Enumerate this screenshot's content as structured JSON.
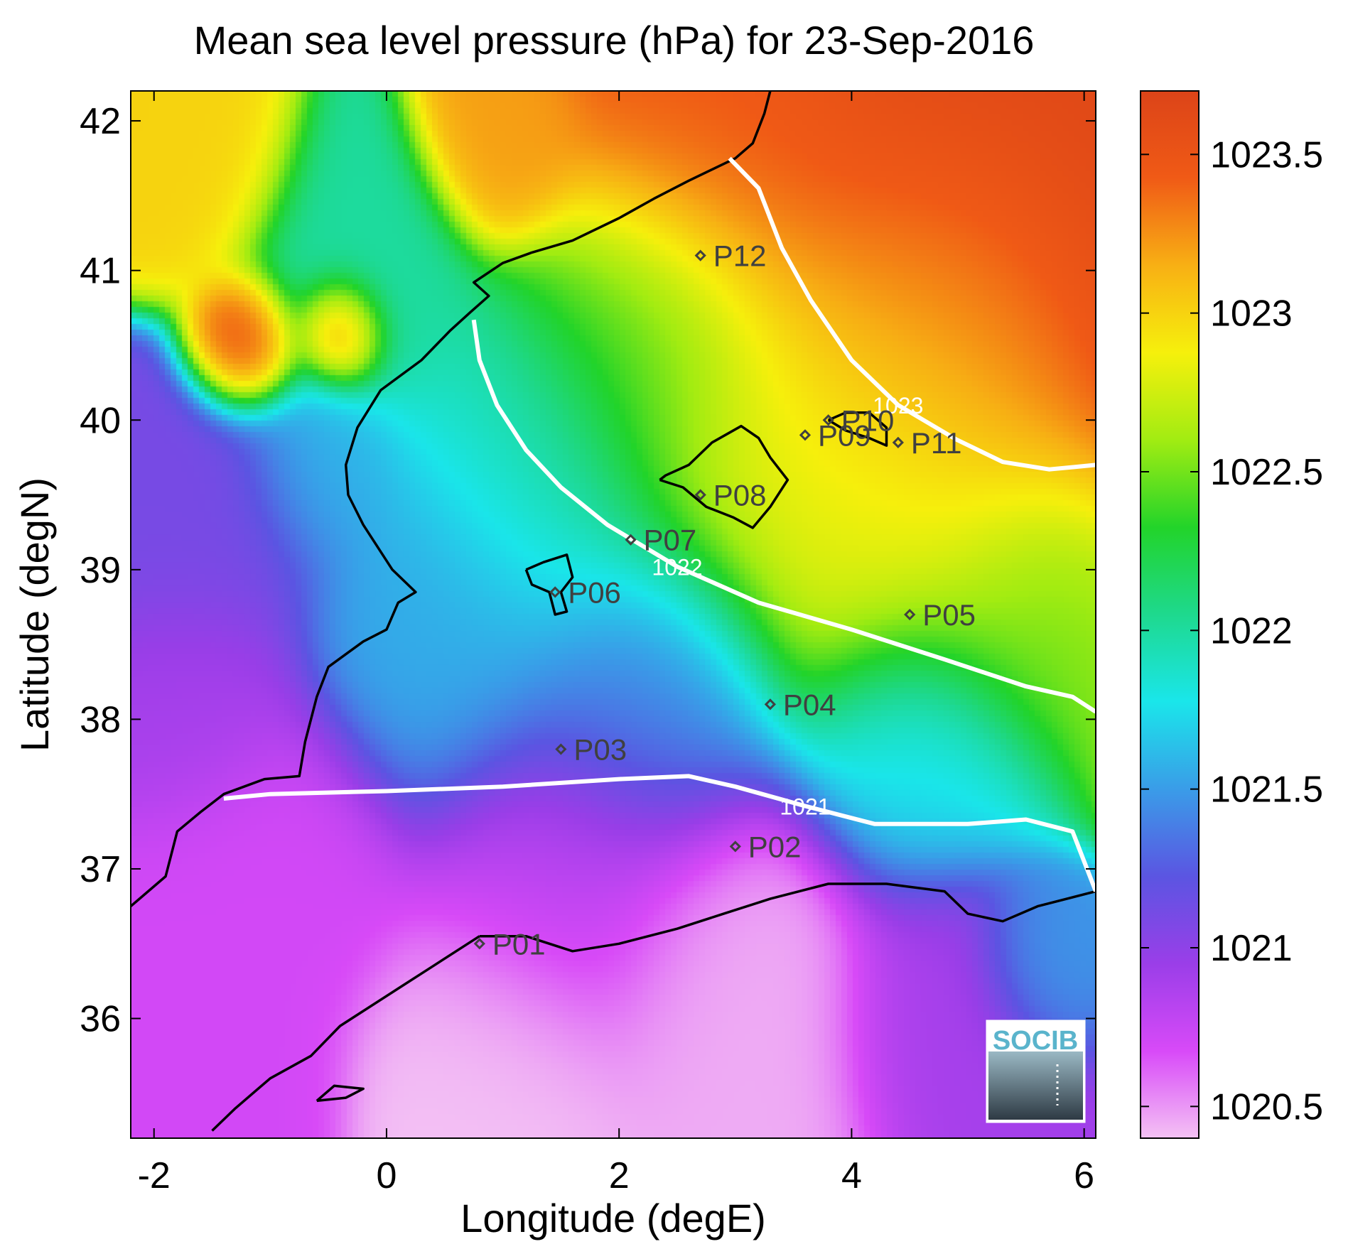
{
  "title": "Mean sea level pressure (hPa) for 23-Sep-2016",
  "xlabel": "Longitude (degE)",
  "ylabel": "Latitude (degN)",
  "chart_data": {
    "type": "heatmap",
    "title": "Mean sea level pressure (hPa) for 23-Sep-2016",
    "xlabel": "Longitude (degE)",
    "ylabel": "Latitude (degN)",
    "xlim": [
      -2.2,
      6.1
    ],
    "ylim": [
      35.2,
      42.2
    ],
    "x_ticks": [
      -2,
      0,
      2,
      4,
      6
    ],
    "y_ticks": [
      36,
      37,
      38,
      39,
      40,
      41,
      42
    ],
    "colorbar": {
      "range": [
        1020.4,
        1023.7
      ],
      "ticks": [
        1020.5,
        1021,
        1021.5,
        1022,
        1022.5,
        1023,
        1023.5
      ],
      "tick_labels": [
        "1020.5",
        "1021",
        "1021.5",
        "1022",
        "1022.5",
        "1023",
        "1023.5"
      ],
      "colors": [
        "#f4c2f4",
        "#d84af8",
        "#9a3ee8",
        "#5b55e2",
        "#3a9ce8",
        "#1ae6ea",
        "#1ed98e",
        "#22d42a",
        "#a2ec12",
        "#f6f00c",
        "#f8b014",
        "#f05a16",
        "#dc4418"
      ]
    },
    "contours": [
      {
        "label": "1021",
        "points": [
          [
            -1.4,
            37.47
          ],
          [
            -1.0,
            37.5
          ],
          [
            0,
            37.52
          ],
          [
            1.0,
            37.55
          ],
          [
            2.0,
            37.6
          ],
          [
            2.6,
            37.62
          ],
          [
            3.0,
            37.55
          ],
          [
            3.6,
            37.42
          ],
          [
            4.2,
            37.3
          ],
          [
            5.0,
            37.3
          ],
          [
            5.5,
            37.33
          ],
          [
            5.9,
            37.25
          ],
          [
            6.05,
            36.95
          ],
          [
            6.1,
            36.85
          ]
        ]
      },
      {
        "label": "1022",
        "points": [
          [
            0.75,
            40.67
          ],
          [
            0.8,
            40.4
          ],
          [
            0.95,
            40.1
          ],
          [
            1.2,
            39.8
          ],
          [
            1.5,
            39.55
          ],
          [
            1.9,
            39.3
          ],
          [
            2.5,
            39.02
          ],
          [
            3.2,
            38.78
          ],
          [
            4.0,
            38.6
          ],
          [
            4.8,
            38.4
          ],
          [
            5.5,
            38.22
          ],
          [
            5.9,
            38.15
          ],
          [
            6.1,
            38.05
          ]
        ]
      },
      {
        "label": "1023",
        "points": [
          [
            2.95,
            41.75
          ],
          [
            3.2,
            41.55
          ],
          [
            3.4,
            41.15
          ],
          [
            3.65,
            40.8
          ],
          [
            4.0,
            40.4
          ],
          [
            4.4,
            40.1
          ],
          [
            4.9,
            39.87
          ],
          [
            5.3,
            39.72
          ],
          [
            5.7,
            39.67
          ],
          [
            6.1,
            39.7
          ]
        ]
      }
    ],
    "stations": [
      {
        "name": "P01",
        "lon": 0.8,
        "lat": 36.5
      },
      {
        "name": "P02",
        "lon": 3.0,
        "lat": 37.15
      },
      {
        "name": "P03",
        "lon": 1.5,
        "lat": 37.8
      },
      {
        "name": "P04",
        "lon": 3.3,
        "lat": 38.1
      },
      {
        "name": "P05",
        "lon": 4.5,
        "lat": 38.7
      },
      {
        "name": "P06",
        "lon": 1.45,
        "lat": 38.85
      },
      {
        "name": "P07",
        "lon": 2.1,
        "lat": 39.2
      },
      {
        "name": "P08",
        "lon": 2.7,
        "lat": 39.5
      },
      {
        "name": "P09",
        "lon": 3.6,
        "lat": 39.9
      },
      {
        "name": "P10",
        "lon": 3.8,
        "lat": 40.0
      },
      {
        "name": "P11",
        "lon": 4.4,
        "lat": 39.85
      },
      {
        "name": "P12",
        "lon": 2.7,
        "lat": 41.1
      }
    ],
    "field_blobs": [
      {
        "lon": 5.2,
        "lat": 41.6,
        "r": 2.8,
        "v": 1023.65
      },
      {
        "lon": 4.8,
        "lat": 40.6,
        "r": 1.6,
        "v": 1023.1
      },
      {
        "lon": 3.0,
        "lat": 41.9,
        "r": 1.5,
        "v": 1023.4
      },
      {
        "lon": 3.2,
        "lat": 40.0,
        "r": 1.7,
        "v": 1022.75
      },
      {
        "lon": 4.5,
        "lat": 39.4,
        "r": 1.6,
        "v": 1022.7
      },
      {
        "lon": 5.6,
        "lat": 38.8,
        "r": 1.1,
        "v": 1022.45
      },
      {
        "lon": 2.3,
        "lat": 40.5,
        "r": 1.2,
        "v": 1022.35
      },
      {
        "lon": 1.4,
        "lat": 39.6,
        "r": 1.3,
        "v": 1021.9
      },
      {
        "lon": 0.5,
        "lat": 38.6,
        "r": 1.3,
        "v": 1021.55
      },
      {
        "lon": 2.2,
        "lat": 38.2,
        "r": 1.3,
        "v": 1021.4
      },
      {
        "lon": 4.6,
        "lat": 37.8,
        "r": 1.1,
        "v": 1021.7
      },
      {
        "lon": -0.3,
        "lat": 41.0,
        "r": 1.0,
        "v": 1022.0
      },
      {
        "lon": -1.6,
        "lat": 41.7,
        "r": 0.8,
        "v": 1023.0
      },
      {
        "lon": -1.2,
        "lat": 40.5,
        "r": 0.5,
        "v": 1023.6
      },
      {
        "lon": -0.4,
        "lat": 40.6,
        "r": 0.4,
        "v": 1023.6
      },
      {
        "lon": 1.0,
        "lat": 41.9,
        "r": 0.7,
        "v": 1023.2
      },
      {
        "lon": -1.5,
        "lat": 39.3,
        "r": 1.1,
        "v": 1021.1
      },
      {
        "lon": -0.6,
        "lat": 39.7,
        "r": 0.7,
        "v": 1021.6
      },
      {
        "lon": -1.6,
        "lat": 38.1,
        "r": 0.9,
        "v": 1020.9
      },
      {
        "lon": -1.0,
        "lat": 37.0,
        "r": 1.2,
        "v": 1020.7
      },
      {
        "lon": 1.5,
        "lat": 36.9,
        "r": 1.3,
        "v": 1020.8
      },
      {
        "lon": 3.0,
        "lat": 36.2,
        "r": 1.4,
        "v": 1020.45
      },
      {
        "lon": 1.0,
        "lat": 35.7,
        "r": 1.2,
        "v": 1020.4
      },
      {
        "lon": 4.8,
        "lat": 36.1,
        "r": 1.0,
        "v": 1020.9
      },
      {
        "lon": 5.6,
        "lat": 36.4,
        "r": 0.6,
        "v": 1021.5
      },
      {
        "lon": -1.5,
        "lat": 35.6,
        "r": 1.0,
        "v": 1020.7
      }
    ],
    "coastlines": [
      [
        [
          -2.2,
          36.75
        ],
        [
          -1.9,
          36.95
        ],
        [
          -1.8,
          37.25
        ],
        [
          -1.6,
          37.38
        ],
        [
          -1.4,
          37.5
        ],
        [
          -1.05,
          37.6
        ],
        [
          -0.75,
          37.62
        ],
        [
          -0.7,
          37.85
        ],
        [
          -0.65,
          38.0
        ],
        [
          -0.6,
          38.15
        ],
        [
          -0.5,
          38.35
        ],
        [
          -0.2,
          38.52
        ],
        [
          0.0,
          38.6
        ],
        [
          0.1,
          38.78
        ],
        [
          0.25,
          38.85
        ],
        [
          0.05,
          39.0
        ],
        [
          -0.2,
          39.3
        ],
        [
          -0.33,
          39.5
        ],
        [
          -0.35,
          39.7
        ],
        [
          -0.25,
          39.95
        ],
        [
          -0.05,
          40.2
        ],
        [
          0.3,
          40.4
        ],
        [
          0.55,
          40.6
        ],
        [
          0.72,
          40.72
        ],
        [
          0.88,
          40.83
        ],
        [
          0.75,
          40.92
        ],
        [
          1.0,
          41.05
        ],
        [
          1.25,
          41.12
        ],
        [
          1.6,
          41.2
        ],
        [
          2.0,
          41.35
        ],
        [
          2.3,
          41.48
        ],
        [
          2.6,
          41.6
        ],
        [
          3.0,
          41.75
        ],
        [
          3.15,
          41.85
        ],
        [
          3.25,
          42.05
        ],
        [
          3.3,
          42.2
        ]
      ],
      [
        [
          2.35,
          39.6
        ],
        [
          2.55,
          39.55
        ],
        [
          2.75,
          39.42
        ],
        [
          2.98,
          39.35
        ],
        [
          3.15,
          39.28
        ],
        [
          3.3,
          39.42
        ],
        [
          3.45,
          39.6
        ],
        [
          3.3,
          39.75
        ],
        [
          3.2,
          39.88
        ],
        [
          3.05,
          39.96
        ],
        [
          2.8,
          39.85
        ],
        [
          2.6,
          39.7
        ],
        [
          2.4,
          39.63
        ],
        [
          2.35,
          39.6
        ]
      ],
      [
        [
          3.8,
          40.0
        ],
        [
          3.95,
          40.05
        ],
        [
          4.15,
          40.05
        ],
        [
          4.3,
          39.95
        ],
        [
          4.3,
          39.83
        ],
        [
          4.15,
          39.88
        ],
        [
          3.95,
          39.93
        ],
        [
          3.8,
          40.0
        ]
      ],
      [
        [
          1.2,
          39.0
        ],
        [
          1.35,
          39.05
        ],
        [
          1.55,
          39.1
        ],
        [
          1.6,
          38.95
        ],
        [
          1.5,
          38.85
        ],
        [
          1.55,
          38.72
        ],
        [
          1.45,
          38.7
        ],
        [
          1.4,
          38.85
        ],
        [
          1.25,
          38.9
        ],
        [
          1.2,
          39.0
        ]
      ],
      [
        [
          0.8,
          36.55
        ],
        [
          1.2,
          36.55
        ],
        [
          1.6,
          36.45
        ],
        [
          2.0,
          36.5
        ],
        [
          2.5,
          36.6
        ],
        [
          2.9,
          36.7
        ],
        [
          3.3,
          36.8
        ],
        [
          3.8,
          36.9
        ],
        [
          4.3,
          36.9
        ],
        [
          4.8,
          36.85
        ],
        [
          5.0,
          36.7
        ],
        [
          5.3,
          36.65
        ],
        [
          5.6,
          36.75
        ],
        [
          6.1,
          36.85
        ]
      ],
      [
        [
          0.8,
          36.55
        ],
        [
          0.4,
          36.35
        ],
        [
          0.1,
          36.2
        ],
        [
          -0.4,
          35.95
        ],
        [
          -0.65,
          35.75
        ],
        [
          -1.0,
          35.6
        ],
        [
          -1.3,
          35.4
        ],
        [
          -1.5,
          35.25
        ]
      ],
      [
        [
          -0.6,
          35.45
        ],
        [
          -0.45,
          35.55
        ],
        [
          -0.2,
          35.53
        ],
        [
          -0.35,
          35.47
        ],
        [
          -0.6,
          35.45
        ]
      ]
    ]
  },
  "logo": {
    "text": "SOCIB"
  }
}
